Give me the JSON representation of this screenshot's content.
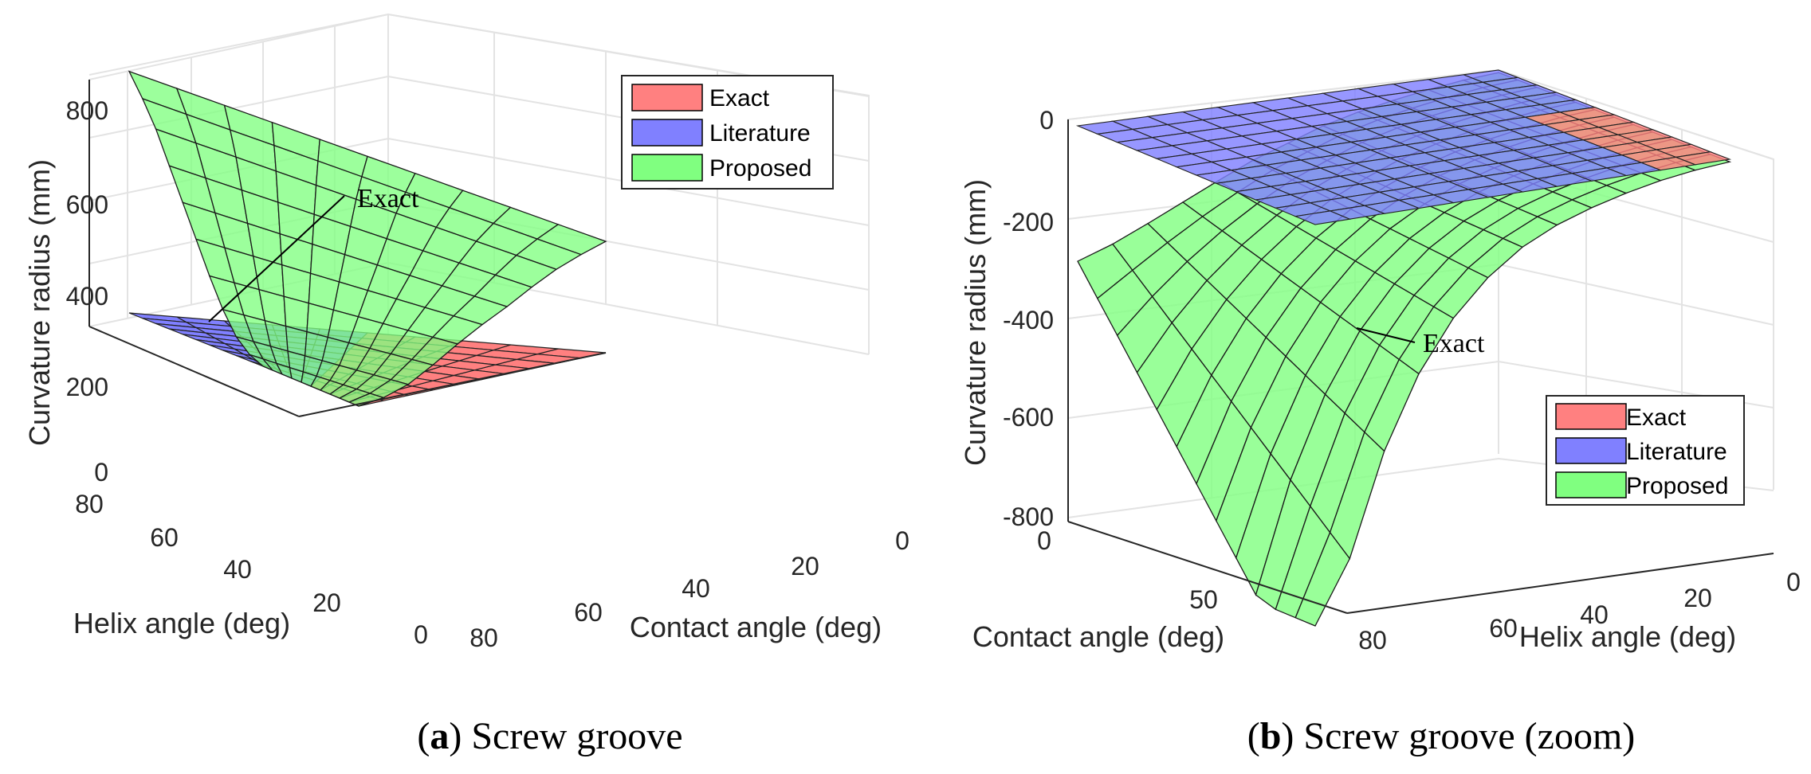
{
  "chart_data": [
    {
      "type": "surface",
      "panel_label": "a",
      "caption": "Screw groove",
      "xlabel": "Contact angle (deg)",
      "ylabel": "Helix angle (deg)",
      "zlabel": "Curvature radius (mm)",
      "x_ticks": [
        "0",
        "20",
        "40",
        "60",
        "80"
      ],
      "y_ticks": [
        "0",
        "20",
        "40",
        "60",
        "80"
      ],
      "z_ticks": [
        "0",
        "200",
        "400",
        "600",
        "800"
      ],
      "xlim": [
        0,
        85
      ],
      "ylim": [
        0,
        85
      ],
      "zlim": [
        0,
        800
      ],
      "grid": true,
      "legend_position": "top-right",
      "series": [
        {
          "name": "Exact",
          "color": "#ff8080"
        },
        {
          "name": "Literature",
          "color": "#8080ff"
        },
        {
          "name": "Proposed",
          "color": "#80ff80"
        }
      ],
      "surfaces": {
        "proposed_edge_helix_0": [
          0,
          10,
          35,
          80,
          130,
          175,
          215,
          260,
          300,
          330,
          355
        ],
        "proposed_edge_helix_85": [
          0,
          20,
          60,
          130,
          220,
          320,
          420,
          520,
          620,
          700,
          770
        ],
        "flat_value": 0
      },
      "annotations": [
        {
          "text": "Exact"
        }
      ]
    },
    {
      "type": "surface",
      "panel_label": "b",
      "caption": "Screw groove (zoom)",
      "xlabel": "Contact angle (deg)",
      "ylabel": "Helix angle (deg)",
      "zlabel": "Curvature radius (mm)",
      "x_ticks": [
        "0",
        "50",
        "80"
      ],
      "y_ticks": [
        "0",
        "20",
        "40",
        "60",
        "80"
      ],
      "z_ticks": [
        "0",
        "-200",
        "-400",
        "-600",
        "-800"
      ],
      "xlim": [
        0,
        85
      ],
      "ylim": [
        0,
        85
      ],
      "zlim": [
        -800,
        0
      ],
      "grid": true,
      "legend_position": "bottom-right",
      "series": [
        {
          "name": "Exact",
          "color": "#ff8080"
        },
        {
          "name": "Literature",
          "color": "#8080ff"
        },
        {
          "name": "Proposed",
          "color": "#80ff80"
        }
      ],
      "surfaces": {
        "proposed_edge_contact_0": [
          -270,
          -240,
          -200,
          -160,
          -120,
          -90,
          -60,
          -40,
          -25,
          -12,
          -5
        ],
        "proposed_edge_contact_85": [
          -960,
          -620,
          -400,
          -260,
          -170,
          -110,
          -70,
          -45,
          -25,
          -12,
          -5
        ],
        "flat_value": 0
      },
      "annotations": [
        {
          "text": "Exact"
        }
      ]
    }
  ],
  "captions": [
    {
      "label": "a",
      "text": "Screw groove"
    },
    {
      "label": "b",
      "text": "Screw groove (zoom)"
    }
  ]
}
